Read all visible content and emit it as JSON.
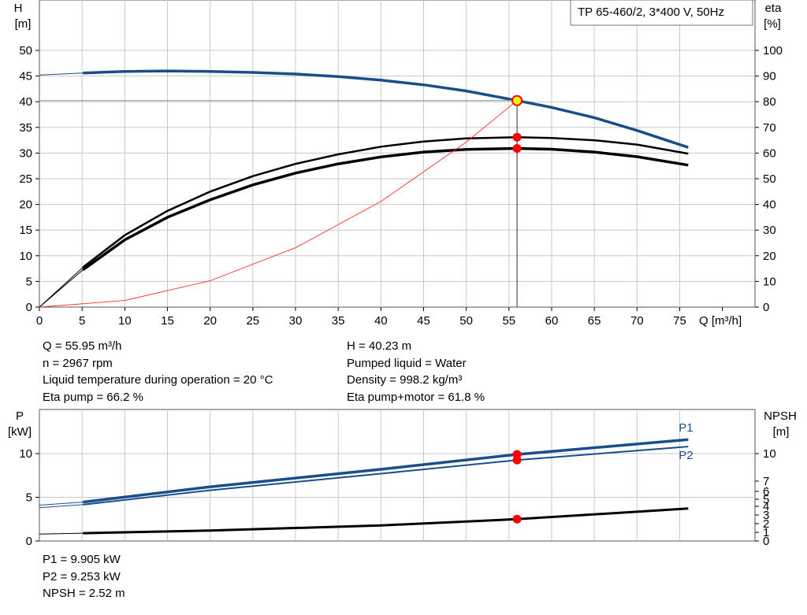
{
  "chart_data": [
    {
      "type": "line",
      "title": "TP 65-460/2, 3*400 V, 50Hz",
      "xlabel": "Q [m³/h]",
      "ylabel": [
        "H",
        "[m]"
      ],
      "y2label": [
        "eta",
        "[%]"
      ],
      "xlim": [
        0,
        80
      ],
      "ylim": [
        0,
        50
      ],
      "y2lim": [
        0,
        100
      ],
      "xticks": [
        0,
        5,
        10,
        15,
        20,
        25,
        30,
        35,
        40,
        45,
        50,
        55,
        60,
        65,
        70,
        75
      ],
      "yticks": [
        0,
        5,
        10,
        15,
        20,
        25,
        30,
        35,
        40,
        45,
        50
      ],
      "y2ticks": [
        0,
        10,
        20,
        30,
        40,
        50,
        60,
        70,
        80,
        90,
        100
      ],
      "grid": true,
      "series": [
        {
          "axis": "y",
          "color": "#1a4e8a",
          "x": [
            0,
            5.1,
            10,
            15,
            20,
            25,
            30,
            35,
            40,
            45,
            50,
            55.95,
            60,
            65,
            70,
            76
          ],
          "values": [
            45.2,
            45.6,
            45.9,
            46.0,
            45.9,
            45.7,
            45.4,
            44.9,
            44.2,
            43.3,
            42.1,
            40.23,
            38.9,
            36.9,
            34.4,
            31.1
          ]
        },
        {
          "axis": "y2",
          "color": "#000000",
          "x": [
            0,
            5.1,
            10,
            15,
            20,
            25,
            30,
            35,
            40,
            45,
            50,
            55.95,
            60,
            65,
            70,
            76
          ],
          "values": [
            0,
            15.5,
            28,
            37.5,
            45,
            51,
            55.8,
            59.5,
            62.5,
            64.5,
            65.7,
            66.2,
            65.9,
            65.0,
            63.3,
            59.8
          ]
        },
        {
          "axis": "y2",
          "color": "#000000",
          "x": [
            0,
            5.1,
            10,
            15,
            20,
            25,
            30,
            35,
            40,
            45,
            50,
            55.95,
            60,
            65,
            70,
            76
          ],
          "values": [
            0,
            14.5,
            26.2,
            35,
            41.8,
            47.6,
            52.2,
            55.8,
            58.5,
            60.4,
            61.4,
            61.8,
            61.5,
            60.4,
            58.6,
            55.3
          ]
        },
        {
          "axis": "y",
          "color": "#ff2a2a",
          "x": [
            0,
            10,
            20,
            30,
            40,
            50,
            55.95
          ],
          "values": [
            0,
            1.29,
            5.14,
            11.57,
            20.57,
            32.13,
            40.23
          ]
        }
      ],
      "operating_point": {
        "q": 55.95,
        "h": 40.23,
        "eta_pump": 66.2,
        "eta_total": 61.8
      }
    },
    {
      "type": "line",
      "ylabel": [
        "P",
        "[kW]"
      ],
      "y2label": [
        "NPSH",
        "[m]"
      ],
      "xlim": [
        0,
        80
      ],
      "ylim": [
        0,
        14
      ],
      "yticks": [
        0,
        5,
        10
      ],
      "y2ticks": [
        "0",
        "1",
        "2",
        "3",
        "4",
        "5",
        "6",
        "7",
        "10"
      ],
      "grid": true,
      "series": [
        {
          "name": "P1",
          "color": "#1a4e8a",
          "x": [
            0,
            5.1,
            20,
            40,
            55.95,
            76
          ],
          "values": [
            4.1,
            4.45,
            6.2,
            8.2,
            9.905,
            11.6
          ]
        },
        {
          "name": "P2",
          "color": "#1a4e8a",
          "x": [
            0,
            5.1,
            20,
            40,
            55.95,
            76
          ],
          "values": [
            3.8,
            4.15,
            5.8,
            7.7,
            9.253,
            10.8
          ]
        },
        {
          "axis": "npsh",
          "color": "#000000",
          "x": [
            0,
            5.1,
            20,
            40,
            55.95,
            76
          ],
          "values": [
            0.8,
            0.9,
            1.2,
            1.8,
            2.52,
            3.75
          ]
        }
      ],
      "operating_point": {
        "q": 55.95,
        "p1": 9.905,
        "p2": 9.253,
        "npsh": 2.52
      }
    }
  ],
  "info_top_left": [
    "Q = 55.95 m³/h",
    "n = 2967 rpm",
    "Liquid temperature during operation = 20 °C",
    "Eta pump = 66.2 %"
  ],
  "info_top_right": [
    "H = 40.23 m",
    "Pumped liquid = Water",
    "Density = 998.2 kg/m³",
    "Eta pump+motor = 61.8 %"
  ],
  "info_bottom": [
    "P1 = 9.905 kW",
    "P2 = 9.253 kW",
    "NPSH = 2.52 m"
  ],
  "colors": {
    "blue": "#1a4e8a",
    "red_point": "#ff0000",
    "operating_point_fill": "#ffff00",
    "grid": "#c8c8c8"
  }
}
